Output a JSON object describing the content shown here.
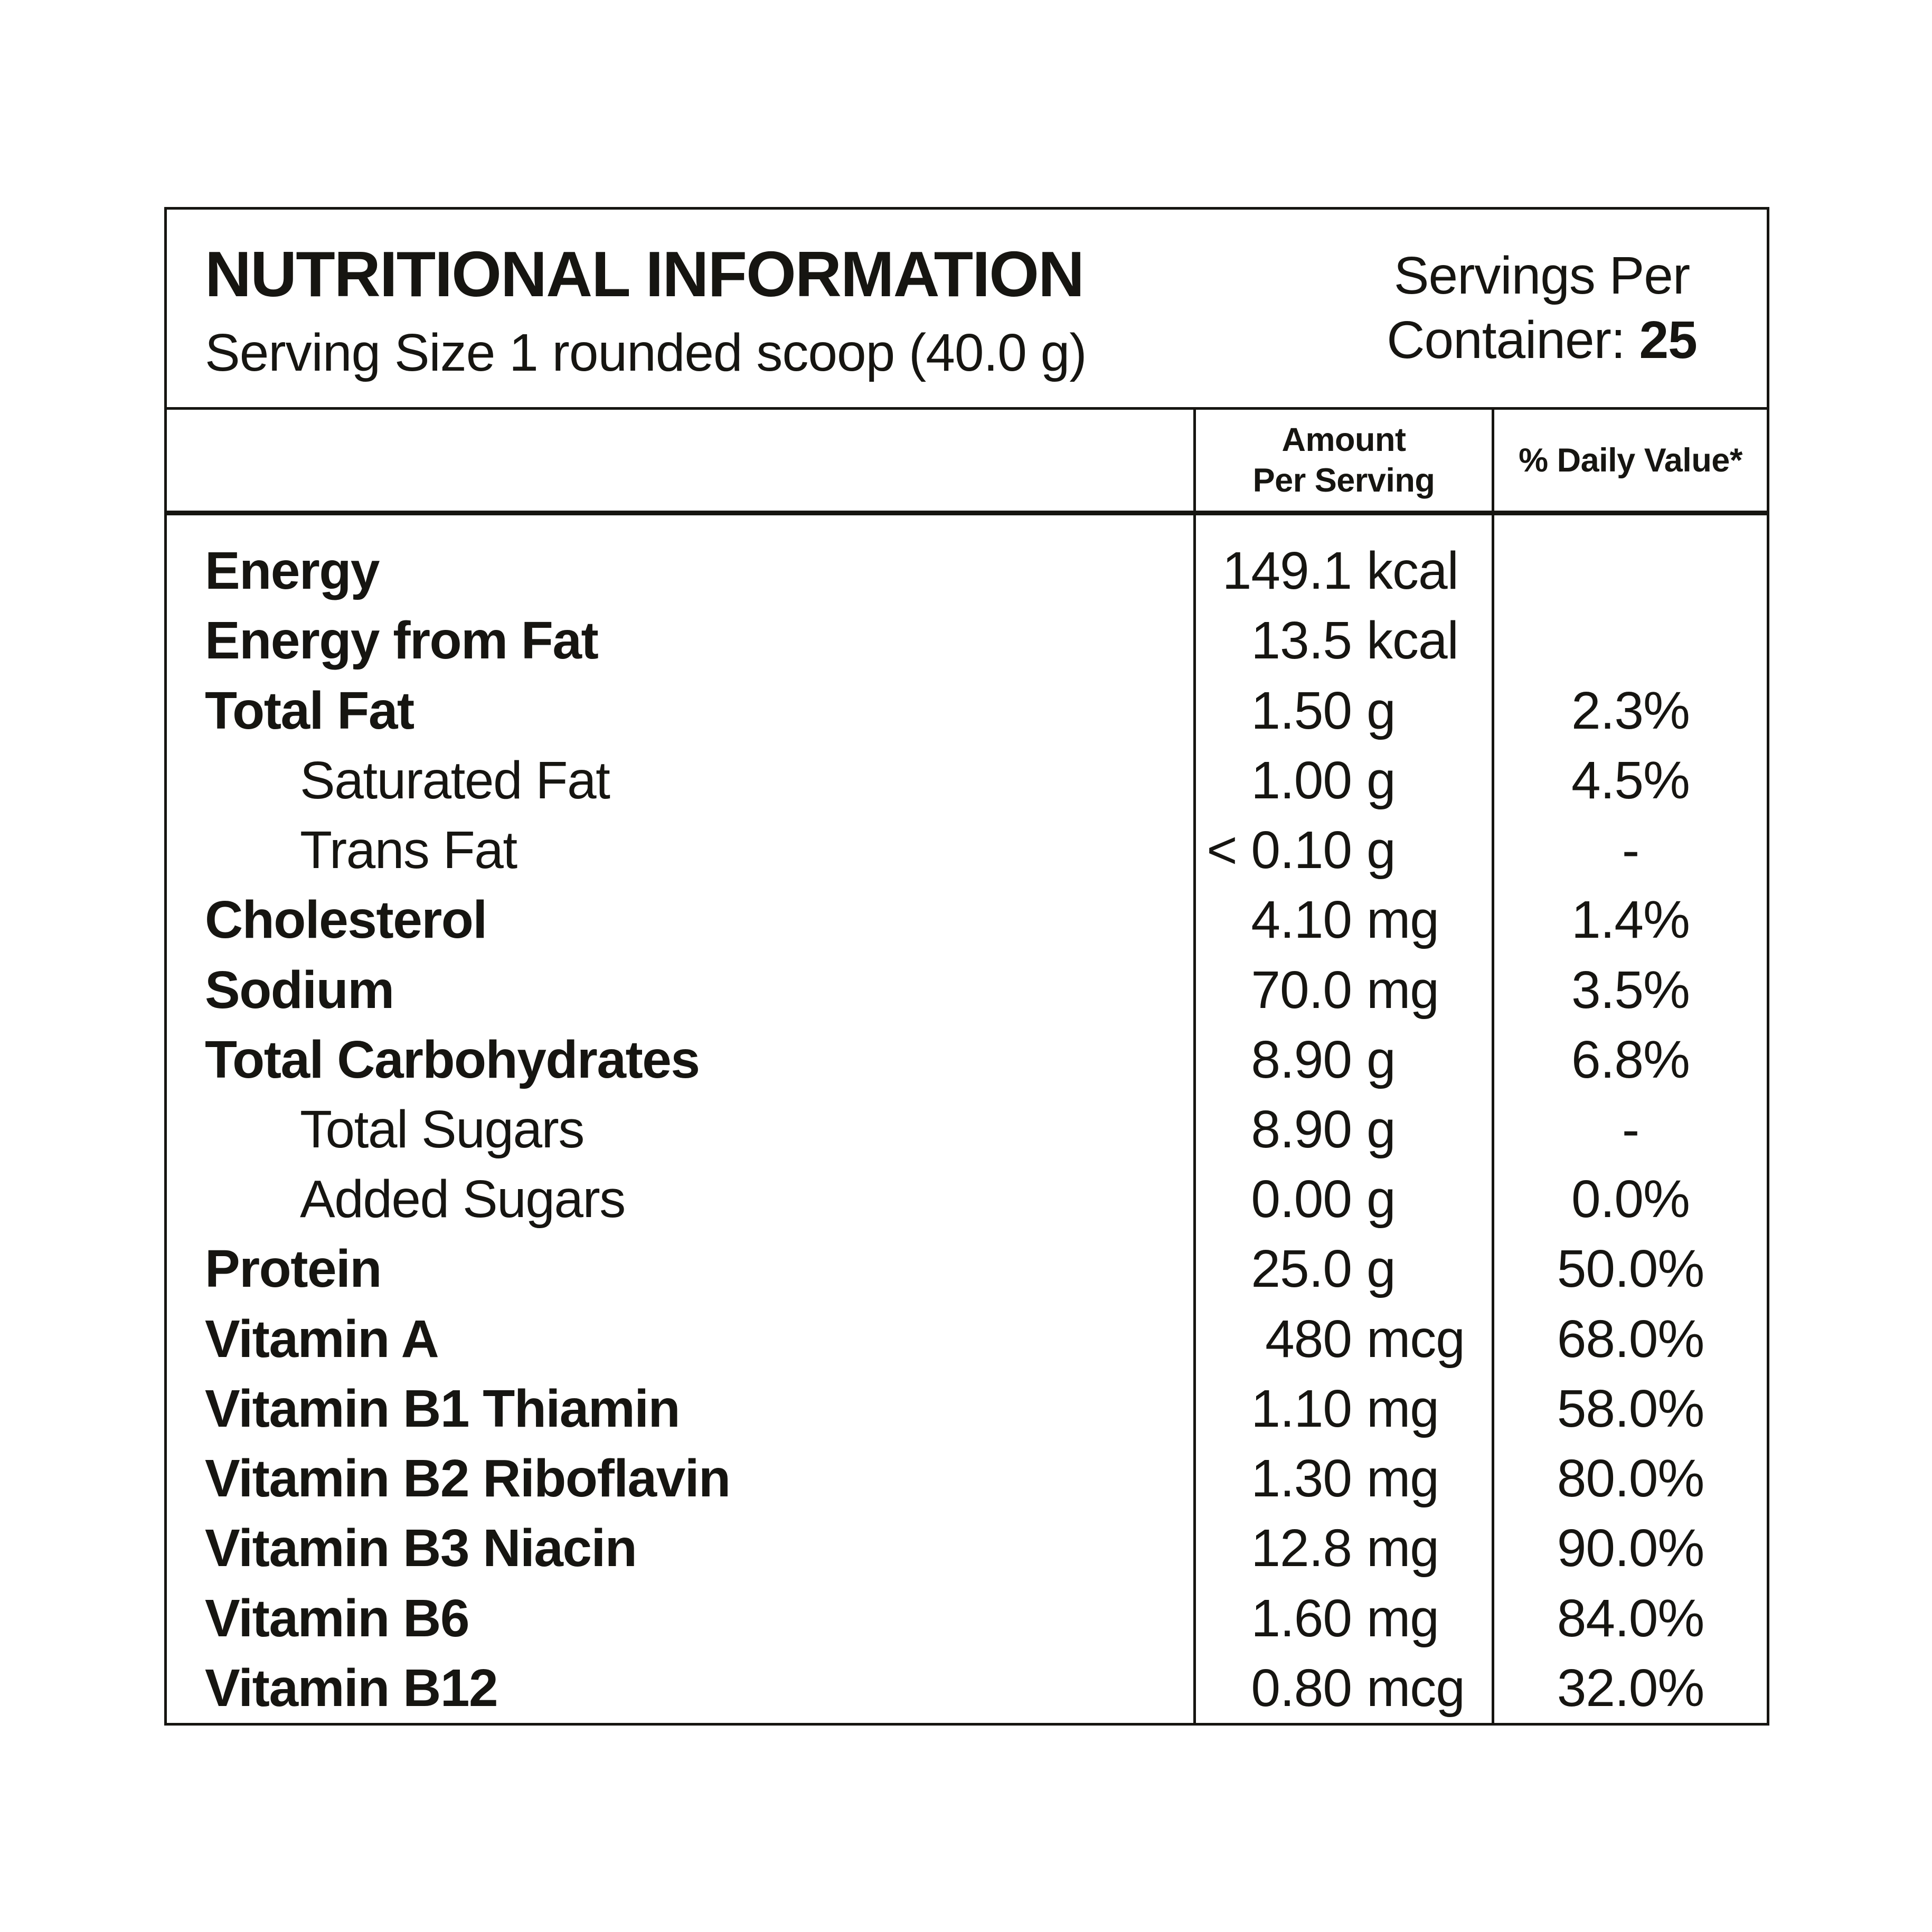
{
  "page": {
    "background_color": "#ffffff",
    "text_color": "#161511",
    "line_color": "#161511"
  },
  "header": {
    "title": "NUTRITIONAL INFORMATION",
    "serving_size": "Serving Size 1 rounded scoop (40.0 g)",
    "servings_per_line1": "Servings Per",
    "servings_per_label": "Container:",
    "servings_per_value": "25"
  },
  "table": {
    "column_headers": {
      "amount_line1": "Amount",
      "amount_line2": "Per Serving",
      "daily_value": "% Daily Value*"
    },
    "rows": [
      {
        "label": "Energy",
        "value": "149.1",
        "unit": "kcal",
        "daily_value": ""
      },
      {
        "label": "Energy from Fat",
        "value": "13.5",
        "unit": "kcal",
        "daily_value": ""
      },
      {
        "label": "Total Fat",
        "value": "1.50",
        "unit": "g",
        "daily_value": "2.3%"
      },
      {
        "label": "Saturated Fat",
        "value": "1.00",
        "unit": "g",
        "daily_value": "4.5%"
      },
      {
        "label": "Trans Fat",
        "value": "< 0.10",
        "unit": "g",
        "daily_value": "-"
      },
      {
        "label": "Cholesterol",
        "value": "4.10",
        "unit": "mg",
        "daily_value": "1.4%"
      },
      {
        "label": "Sodium",
        "value": "70.0",
        "unit": "mg",
        "daily_value": "3.5%"
      },
      {
        "label": "Total Carbohydrates",
        "value": "8.90",
        "unit": "g",
        "daily_value": "6.8%"
      },
      {
        "label": "Total Sugars",
        "value": "8.90",
        "unit": "g",
        "daily_value": "-"
      },
      {
        "label": "Added Sugars",
        "value": "0.00",
        "unit": "g",
        "daily_value": "0.0%"
      },
      {
        "label": "Protein",
        "value": "25.0",
        "unit": "g",
        "daily_value": "50.0%"
      },
      {
        "label": "Vitamin A",
        "value": "480",
        "unit": "mcg",
        "daily_value": "68.0%"
      },
      {
        "label": "Vitamin B1 Thiamin",
        "value": "1.10",
        "unit": "mg",
        "daily_value": "58.0%"
      },
      {
        "label": "Vitamin B2 Riboflavin",
        "value": "1.30",
        "unit": "mg",
        "daily_value": "80.0%"
      },
      {
        "label": "Vitamin B3 Niacin",
        "value": "12.8",
        "unit": "mg",
        "daily_value": "90.0%"
      },
      {
        "label": "Vitamin B6",
        "value": "1.60",
        "unit": "mg",
        "daily_value": "84.0%"
      },
      {
        "label": "Vitamin B12",
        "value": "0.80",
        "unit": "mcg",
        "daily_value": "32.0%"
      }
    ]
  }
}
